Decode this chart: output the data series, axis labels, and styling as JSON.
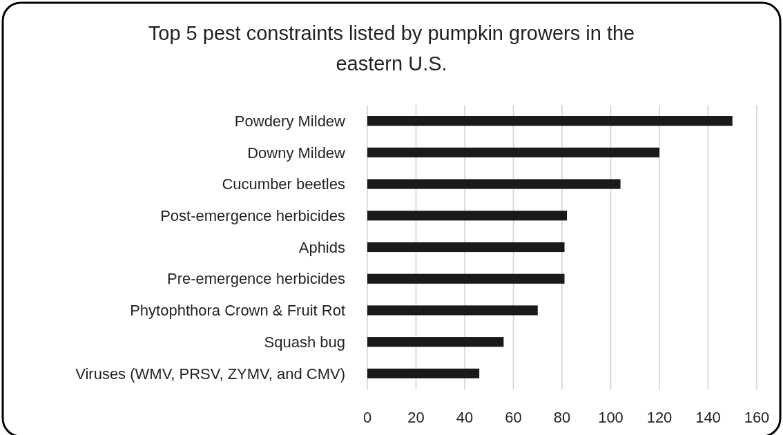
{
  "chart_data": {
    "type": "bar",
    "orientation": "horizontal",
    "title": "Top 5 pest constraints listed by pumpkin growers in the eastern U.S.",
    "categories": [
      "Powdery Mildew",
      "Downy Mildew",
      "Cucumber beetles",
      "Post-emergence herbicides",
      "Aphids",
      "Pre-emergence herbicides",
      "Phytophthora Crown & Fruit Rot",
      "Squash bug",
      "Viruses (WMV, PRSV, ZYMV, and CMV)"
    ],
    "values": [
      150,
      120,
      104,
      82,
      81,
      81,
      70,
      56,
      46
    ],
    "color": "#1a1a1a",
    "xlim": [
      0,
      160
    ],
    "xticks": [
      0,
      20,
      40,
      60,
      80,
      100,
      120,
      140,
      160
    ],
    "grid": "x"
  }
}
